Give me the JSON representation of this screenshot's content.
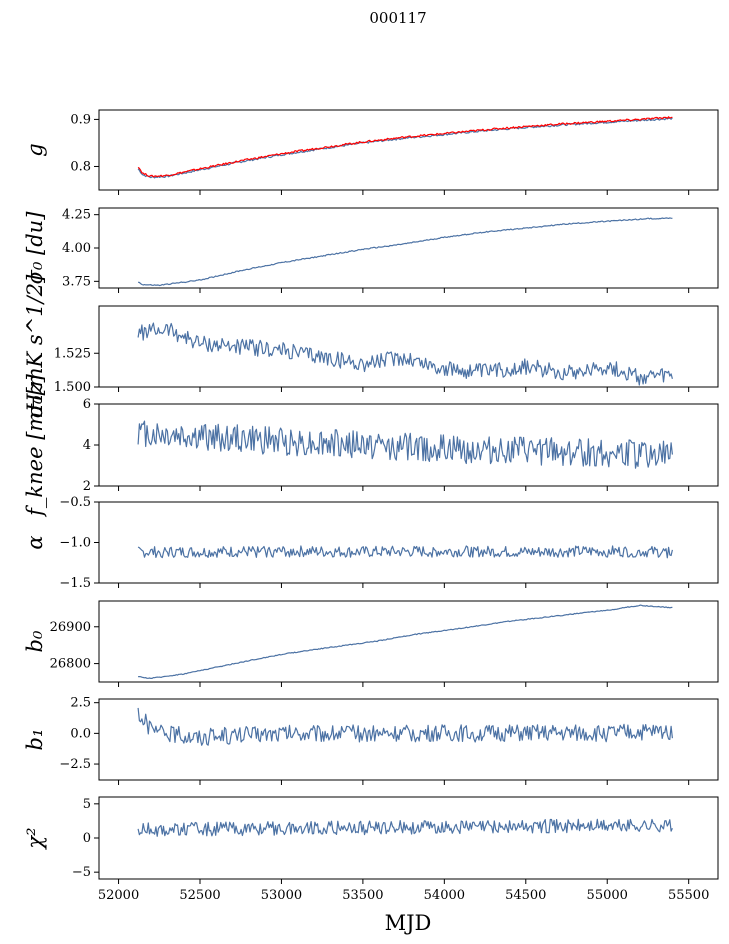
{
  "figure": {
    "title": "000117",
    "xlabel": "MJD"
  },
  "colors": {
    "series": "#4c72a4",
    "overlay": "#ff0000",
    "axis": "#000000"
  },
  "chart_data": [
    {
      "type": "line",
      "key": "g",
      "ylabel": "g",
      "ylim": [
        0.75,
        0.92
      ],
      "yticks": [
        0.8,
        0.9
      ],
      "ytick_labels": [
        "0.8",
        "0.9"
      ],
      "x": [
        52120,
        52150,
        52200,
        52300,
        52500,
        52750,
        53000,
        53250,
        53500,
        53750,
        54000,
        54250,
        54500,
        54750,
        55000,
        55250,
        55400
      ],
      "series": [
        {
          "color": "#4c72a4",
          "values": [
            0.795,
            0.782,
            0.777,
            0.779,
            0.793,
            0.81,
            0.825,
            0.838,
            0.85,
            0.86,
            0.868,
            0.876,
            0.883,
            0.889,
            0.894,
            0.899,
            0.902
          ]
        },
        {
          "color": "#ff0000",
          "values": [
            0.8,
            0.785,
            0.779,
            0.781,
            0.795,
            0.812,
            0.827,
            0.84,
            0.852,
            0.862,
            0.87,
            0.878,
            0.885,
            0.891,
            0.896,
            0.901,
            0.905
          ]
        }
      ]
    },
    {
      "type": "line",
      "key": "sigma0",
      "ylabel": "σ₀ [du]",
      "ylim": [
        3.7,
        4.3
      ],
      "yticks": [
        3.75,
        4.0,
        4.25
      ],
      "ytick_labels": [
        "3.75",
        "4.00",
        "4.25"
      ],
      "x": [
        52120,
        52150,
        52250,
        52500,
        52750,
        53000,
        53250,
        53500,
        53750,
        54000,
        54250,
        54500,
        54750,
        55000,
        55250,
        55400
      ],
      "series": [
        {
          "color": "#4c72a4",
          "values": [
            3.745,
            3.725,
            3.72,
            3.76,
            3.83,
            3.89,
            3.94,
            3.99,
            4.03,
            4.08,
            4.12,
            4.15,
            4.18,
            4.2,
            4.22,
            4.225
          ]
        }
      ]
    },
    {
      "type": "line",
      "key": "sigma0_cal",
      "ylabel": "σ₀[mK s^1/2]",
      "ylim": [
        1.5,
        1.56
      ],
      "yticks": [
        1.5,
        1.525
      ],
      "ytick_labels": [
        "1.500",
        "1.525"
      ],
      "x": [
        52120,
        52300,
        52500,
        52750,
        53000,
        53250,
        53500,
        53750,
        54000,
        54250,
        54500,
        54750,
        55000,
        55200,
        55400
      ],
      "series": [
        {
          "color": "#4c72a4",
          "values": [
            1.54,
            1.543,
            1.532,
            1.53,
            1.527,
            1.522,
            1.517,
            1.522,
            1.513,
            1.511,
            1.515,
            1.511,
            1.515,
            1.507,
            1.508
          ]
        }
      ]
    },
    {
      "type": "line",
      "key": "fknee",
      "ylabel": "f_knee [mHz]",
      "ylim": [
        2,
        6
      ],
      "yticks": [
        2,
        4,
        6
      ],
      "ytick_labels": [
        "2",
        "4",
        "6"
      ],
      "x": [
        52120,
        52500,
        53000,
        53500,
        54000,
        54500,
        55000,
        55400
      ],
      "series": [
        {
          "color": "#4c72a4",
          "values": [
            4.6,
            4.4,
            4.2,
            4.0,
            3.8,
            3.7,
            3.6,
            3.5
          ]
        }
      ]
    },
    {
      "type": "line",
      "key": "alpha",
      "ylabel": "α",
      "ylim": [
        -1.5,
        -0.5
      ],
      "yticks": [
        -1.5,
        -1.0,
        -0.5
      ],
      "ytick_labels": [
        "−1.5",
        "−1.0",
        "−0.5"
      ],
      "x": [
        52120,
        52500,
        53000,
        53500,
        54000,
        54500,
        55000,
        55400
      ],
      "series": [
        {
          "color": "#4c72a4",
          "values": [
            -1.12,
            -1.12,
            -1.11,
            -1.12,
            -1.11,
            -1.12,
            -1.11,
            -1.12
          ]
        }
      ]
    },
    {
      "type": "line",
      "key": "b0",
      "ylabel": "b₀",
      "ylim": [
        26750,
        26970
      ],
      "yticks": [
        26800,
        26900
      ],
      "ytick_labels": [
        "26800",
        "26900"
      ],
      "x": [
        52120,
        52200,
        52400,
        52600,
        52800,
        53000,
        53200,
        53400,
        53600,
        53800,
        54000,
        54200,
        54400,
        54600,
        54800,
        55000,
        55200,
        55400
      ],
      "series": [
        {
          "color": "#4c72a4",
          "values": [
            26764,
            26760,
            26772,
            26790,
            26808,
            26825,
            26838,
            26850,
            26862,
            26878,
            26890,
            26902,
            26915,
            26925,
            26935,
            26945,
            26958,
            26952
          ]
        }
      ]
    },
    {
      "type": "line",
      "key": "b1",
      "ylabel": "b₁",
      "ylim": [
        -3.8,
        2.8
      ],
      "yticks": [
        -2.5,
        0.0,
        2.5
      ],
      "ytick_labels": [
        "−2.5",
        "0.0",
        "2.5"
      ],
      "x": [
        52120,
        52200,
        52500,
        53000,
        53500,
        54000,
        54500,
        55000,
        55400
      ],
      "series": [
        {
          "color": "#4c72a4",
          "values": [
            1.8,
            0.2,
            -0.3,
            0.0,
            0.0,
            0.0,
            0.0,
            0.0,
            0.2
          ]
        }
      ]
    },
    {
      "type": "line",
      "key": "chi2",
      "ylabel": "χ²",
      "ylim": [
        -6,
        6
      ],
      "yticks": [
        -5,
        0,
        5
      ],
      "ytick_labels": [
        "−5",
        "0",
        "5"
      ],
      "x": [
        52120,
        52500,
        53000,
        53500,
        54000,
        54500,
        55000,
        55400
      ],
      "series": [
        {
          "color": "#4c72a4",
          "values": [
            1.2,
            1.3,
            1.4,
            1.5,
            1.6,
            1.7,
            1.8,
            1.9
          ]
        }
      ]
    }
  ],
  "xaxis": {
    "xlim": [
      51880,
      55680
    ],
    "ticks": [
      52000,
      52500,
      53000,
      53500,
      54000,
      54500,
      55000,
      55500
    ],
    "tick_labels": [
      "52000",
      "52500",
      "53000",
      "53500",
      "54000",
      "54500",
      "55000",
      "55500"
    ]
  }
}
